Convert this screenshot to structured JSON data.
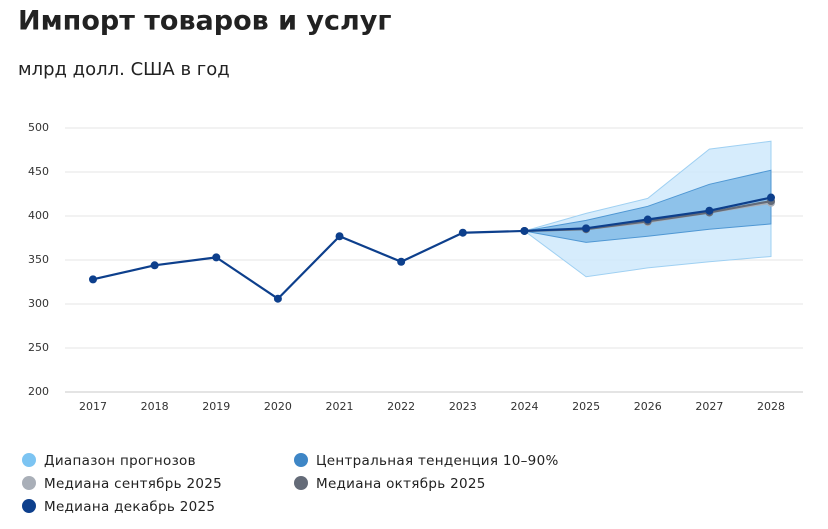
{
  "chart_data": {
    "type": "line",
    "title": "Импорт товаров и услуг",
    "subtitle": "млрд долл. США в год",
    "categories": [
      "2017",
      "2018",
      "2019",
      "2020",
      "2021",
      "2022",
      "2023",
      "2024",
      "2025",
      "2026",
      "2027",
      "2028"
    ],
    "ylim": [
      200,
      500
    ],
    "yticks": [
      200,
      250,
      300,
      350,
      400,
      450,
      500
    ],
    "grid": true,
    "bands": [
      {
        "name": "Диапазон прогнозов",
        "color": "#cfe9fb",
        "lower": [
          null,
          null,
          null,
          null,
          null,
          null,
          null,
          383,
          331,
          341,
          348,
          354
        ],
        "upper": [
          null,
          null,
          null,
          null,
          null,
          null,
          null,
          383,
          403,
          420,
          476,
          485
        ]
      },
      {
        "name": "Центральная тенденция 10–90%",
        "color": "#6fb0e3",
        "lower": [
          null,
          null,
          null,
          null,
          null,
          null,
          null,
          383,
          370,
          377,
          385,
          391
        ],
        "upper": [
          null,
          null,
          null,
          null,
          null,
          null,
          null,
          383,
          395,
          411,
          436,
          452
        ]
      }
    ],
    "series": [
      {
        "name": "Медиана сентябрь 2025",
        "color": "#a9afb8",
        "values": [
          null,
          null,
          null,
          null,
          null,
          null,
          null,
          383,
          385,
          393,
          404,
          415
        ]
      },
      {
        "name": "Медиана октябрь 2025",
        "color": "#646b78",
        "values": [
          null,
          null,
          null,
          null,
          null,
          null,
          null,
          383,
          385,
          394,
          404,
          417
        ]
      },
      {
        "name": "Медиана декабрь 2025",
        "color": "#0d3f8c",
        "values": [
          328,
          344,
          353,
          306,
          377,
          348,
          381,
          383,
          386,
          396,
          406,
          421
        ]
      }
    ]
  }
}
